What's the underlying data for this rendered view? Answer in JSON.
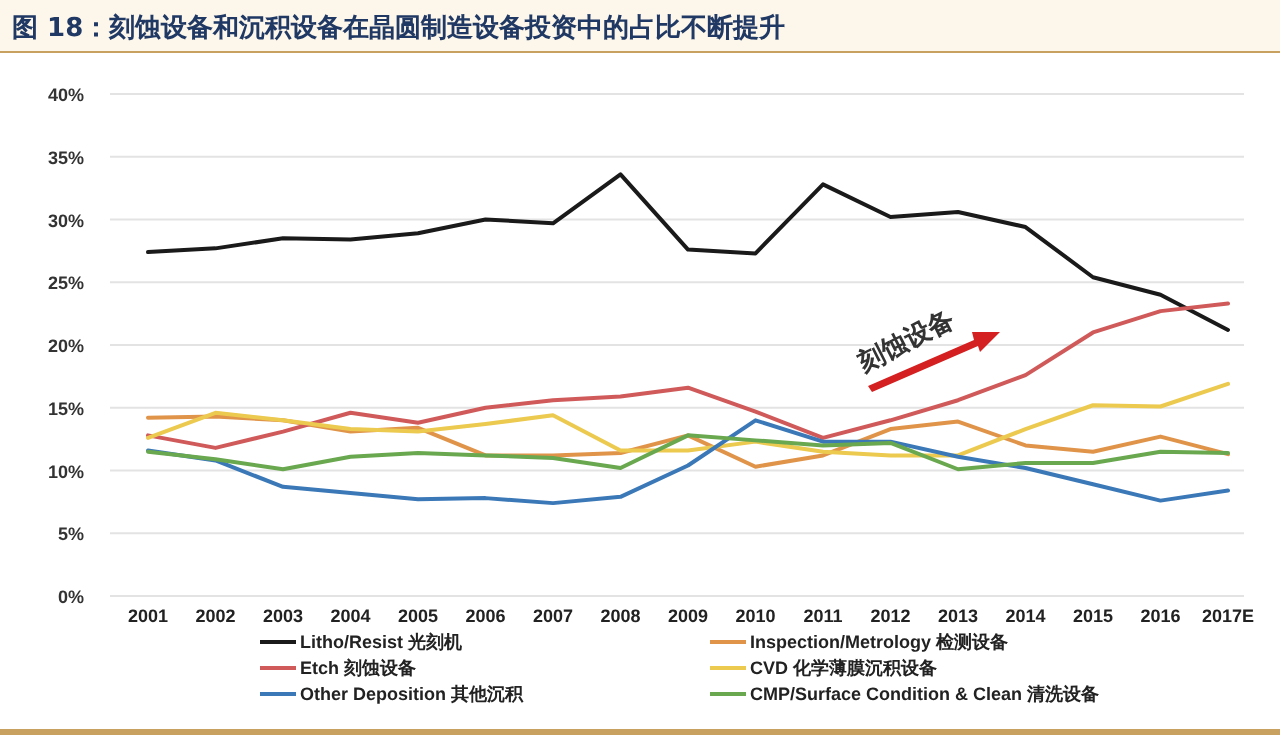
{
  "chart_data": {
    "type": "line",
    "title": "图 18：刻蚀设备和沉积设备在晶圆制造设备投资中的占比不断提升",
    "categories": [
      "2001",
      "2002",
      "2003",
      "2004",
      "2005",
      "2006",
      "2007",
      "2008",
      "2009",
      "2010",
      "2011",
      "2012",
      "2013",
      "2014",
      "2015",
      "2016",
      "2017E"
    ],
    "series": [
      {
        "name": "Litho/Resist 光刻机",
        "color": "#1a1a1a",
        "values": [
          27.4,
          27.7,
          28.5,
          28.4,
          28.9,
          30.0,
          29.7,
          33.6,
          27.6,
          27.3,
          32.8,
          30.2,
          30.6,
          29.4,
          25.4,
          24.0,
          21.2
        ]
      },
      {
        "name": "Inspection/Metrology 检测设备",
        "color": "#e0944a",
        "values": [
          14.2,
          14.3,
          14.0,
          13.1,
          13.4,
          11.2,
          11.2,
          11.4,
          12.8,
          10.3,
          11.2,
          13.3,
          13.9,
          12.0,
          11.5,
          12.7,
          11.3
        ]
      },
      {
        "name": "Etch 刻蚀设备",
        "color": "#d05a5a",
        "values": [
          12.8,
          11.8,
          13.1,
          14.6,
          13.8,
          15.0,
          15.6,
          15.9,
          16.6,
          14.7,
          12.6,
          14.0,
          15.6,
          17.6,
          21.0,
          22.7,
          23.3
        ]
      },
      {
        "name": "CVD 化学薄膜沉积设备",
        "color": "#ecc94f",
        "values": [
          12.6,
          14.6,
          14.0,
          13.3,
          13.1,
          13.7,
          14.4,
          11.6,
          11.6,
          12.3,
          11.5,
          11.2,
          11.2,
          13.3,
          15.2,
          15.1,
          16.9
        ]
      },
      {
        "name": "Other Deposition 其他沉积",
        "color": "#3b78b8",
        "values": [
          11.6,
          10.8,
          8.7,
          8.2,
          7.7,
          7.8,
          7.4,
          7.9,
          10.4,
          14.0,
          12.3,
          12.3,
          11.1,
          10.2,
          8.9,
          7.6,
          8.4
        ]
      },
      {
        "name": "CMP/Surface Condition & Clean 清洗设备",
        "color": "#6aa84f",
        "values": [
          11.5,
          10.9,
          10.1,
          11.1,
          11.4,
          11.2,
          11.0,
          10.2,
          12.8,
          12.4,
          12.0,
          12.2,
          10.1,
          10.6,
          10.6,
          11.5,
          11.4
        ]
      }
    ],
    "ylim": [
      0,
      40
    ],
    "yticks": [
      {
        "value": 0,
        "label": "0%"
      },
      {
        "value": 5,
        "label": "5%"
      },
      {
        "value": 10,
        "label": "10%"
      },
      {
        "value": 15,
        "label": "15%"
      },
      {
        "value": 20,
        "label": "20%"
      },
      {
        "value": 25,
        "label": "25%"
      },
      {
        "value": 30,
        "label": "30%"
      },
      {
        "value": 35,
        "label": "35%"
      },
      {
        "value": 40,
        "label": "40%"
      }
    ],
    "grid": "y",
    "legend": "bottom",
    "marker": "none",
    "line_style": "solid",
    "annotations": [
      "刻蚀设备"
    ]
  }
}
